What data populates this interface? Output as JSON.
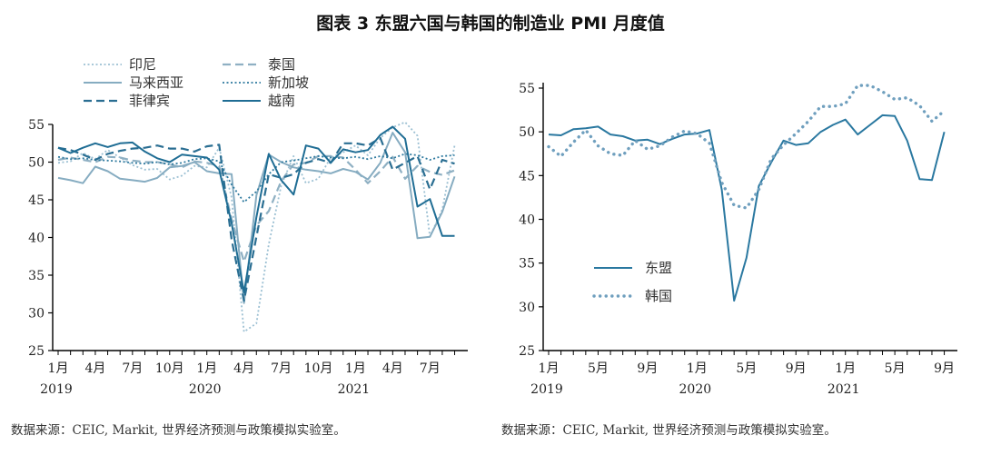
{
  "figure_title": "图表 3    东盟六国与韩国的制造业 PMI 月度值",
  "sources": {
    "left": "数据来源：CEIC, Markit, 世界经济预测与政策模拟实验室。",
    "right": "数据来源：CEIC, Markit, 世界经济预测与政策模拟实验室。"
  },
  "colors": {
    "indonesia": "#9cc0d3",
    "thailand": "#8fb0c3",
    "malaysia": "#86acc1",
    "singapore": "#2f7a9f",
    "philippines": "#2a6e92",
    "vietnam": "#1f6d94",
    "asean": "#2a78a0",
    "korea": "#6f9fbe",
    "axis": "#000000"
  },
  "chart_data": [
    {
      "type": "line",
      "x_count": 33,
      "ylim": [
        25,
        55
      ],
      "yticks": [
        "25",
        "30",
        "35",
        "40",
        "45",
        "50",
        "55"
      ],
      "xtick_labels": [
        "1月",
        "4月",
        "7月",
        "10月",
        "1月",
        "4月",
        "7月",
        "10月",
        "1月",
        "4月",
        "7月"
      ],
      "xtick_index": [
        0,
        3,
        6,
        9,
        12,
        15,
        18,
        21,
        24,
        27,
        30
      ],
      "year_labels": [
        "2019",
        "2020",
        "2021"
      ],
      "year_index": [
        0,
        12,
        24
      ],
      "series": [
        {
          "name": "印尼",
          "style": "dotted",
          "color_key": "indonesia",
          "values": [
            49.9,
            50.1,
            51.2,
            50.4,
            51.6,
            50.6,
            49.6,
            49.0,
            49.1,
            47.7,
            48.2,
            49.5,
            49.3,
            51.9,
            45.3,
            27.5,
            28.6,
            39.1,
            46.9,
            50.8,
            47.2,
            47.8,
            50.6,
            51.3,
            52.2,
            50.9,
            53.2,
            54.6,
            55.3,
            53.5,
            40.1,
            43.7,
            52.2
          ]
        },
        {
          "name": "泰国",
          "style": "dashed",
          "color_key": "thailand",
          "values": [
            50.3,
            50.6,
            50.3,
            50.0,
            50.7,
            50.6,
            50.2,
            50.0,
            50.0,
            49.7,
            49.3,
            50.1,
            49.9,
            49.5,
            42.4,
            36.8,
            41.6,
            43.5,
            47.5,
            49.7,
            49.9,
            50.8,
            50.8,
            50.6,
            49.0,
            47.2,
            48.8,
            50.7,
            47.8,
            49.5,
            48.7,
            48.3,
            48.9
          ]
        },
        {
          "name": "马来西亚",
          "style": "solid",
          "color_key": "malaysia",
          "values": [
            47.9,
            47.6,
            47.2,
            49.4,
            48.8,
            47.8,
            47.6,
            47.4,
            47.9,
            49.3,
            49.5,
            50.0,
            48.8,
            48.5,
            48.4,
            31.3,
            45.6,
            51.0,
            50.0,
            49.3,
            49.0,
            48.8,
            48.5,
            49.1,
            48.7,
            47.7,
            49.9,
            53.9,
            51.3,
            39.9,
            40.1,
            43.4,
            48.1
          ]
        },
        {
          "name": "新加坡",
          "style": "dotted",
          "color_key": "singapore",
          "values": [
            50.7,
            50.4,
            50.5,
            50.3,
            50.2,
            50.1,
            49.9,
            49.8,
            50.0,
            49.7,
            49.9,
            50.4,
            50.5,
            50.1,
            47.0,
            44.7,
            46.1,
            48.4,
            50.0,
            50.2,
            50.5,
            50.8,
            50.6,
            50.5,
            50.7,
            50.4,
            50.8,
            50.5,
            51.1,
            50.9,
            50.3,
            50.8,
            50.9
          ]
        },
        {
          "name": "菲律宾",
          "style": "dashed",
          "color_key": "philippines",
          "values": [
            51.9,
            51.6,
            51.0,
            50.3,
            51.1,
            51.5,
            51.8,
            51.9,
            52.2,
            51.8,
            51.8,
            51.4,
            52.1,
            52.3,
            39.7,
            31.6,
            40.1,
            48.4,
            47.9,
            48.4,
            49.9,
            50.4,
            49.9,
            52.5,
            52.5,
            52.2,
            53.2,
            49.0,
            49.9,
            50.8,
            46.4,
            50.3,
            49.8
          ]
        },
        {
          "name": "越南",
          "style": "solid",
          "color_key": "vietnam",
          "values": [
            51.9,
            51.2,
            51.9,
            52.5,
            52.0,
            52.5,
            52.6,
            51.4,
            50.5,
            50.0,
            51.0,
            50.8,
            50.6,
            49.0,
            41.9,
            32.7,
            42.7,
            51.1,
            47.6,
            45.7,
            52.2,
            51.8,
            49.9,
            51.7,
            51.3,
            51.6,
            53.6,
            54.7,
            53.1,
            44.1,
            45.1,
            40.2,
            40.2
          ]
        }
      ],
      "legend": {
        "col1": [
          "印尼",
          "马来西亚",
          "菲律宾"
        ],
        "col2": [
          "泰国",
          "新加坡",
          "越南"
        ]
      }
    },
    {
      "type": "line",
      "x_count": 33,
      "ylim": [
        25,
        55
      ],
      "yticks": [
        "25",
        "30",
        "35",
        "40",
        "45",
        "50",
        "55"
      ],
      "xtick_labels": [
        "1月",
        "5月",
        "9月",
        "1月",
        "5月",
        "9月",
        "1月",
        "5月",
        "9月"
      ],
      "xtick_index": [
        0,
        4,
        8,
        12,
        16,
        20,
        24,
        28,
        32
      ],
      "year_labels": [
        "2019",
        "2020",
        "2021"
      ],
      "year_index": [
        0,
        12,
        24
      ],
      "series": [
        {
          "name": "东盟",
          "style": "solid",
          "color_key": "asean",
          "values": [
            49.7,
            49.6,
            50.3,
            50.4,
            50.6,
            49.7,
            49.5,
            49.0,
            49.1,
            48.6,
            49.2,
            49.7,
            49.8,
            50.2,
            43.4,
            30.7,
            35.6,
            43.8,
            46.5,
            49.0,
            48.5,
            48.7,
            50.0,
            50.8,
            51.4,
            49.7,
            50.8,
            51.9,
            51.8,
            49.0,
            44.6,
            44.5,
            50.0
          ]
        },
        {
          "name": "韩国",
          "style": "dotted",
          "color_key": "korea",
          "values": [
            48.3,
            47.2,
            48.8,
            50.2,
            48.4,
            47.5,
            47.3,
            49.0,
            48.0,
            48.4,
            49.4,
            50.1,
            49.8,
            48.7,
            44.2,
            41.6,
            41.3,
            43.4,
            46.9,
            48.5,
            49.8,
            51.2,
            52.9,
            52.9,
            53.2,
            55.3,
            55.3,
            54.6,
            53.7,
            53.9,
            53.0,
            51.2,
            52.4
          ]
        }
      ],
      "legend": {
        "items": [
          "东盟",
          "韩国"
        ]
      }
    }
  ]
}
